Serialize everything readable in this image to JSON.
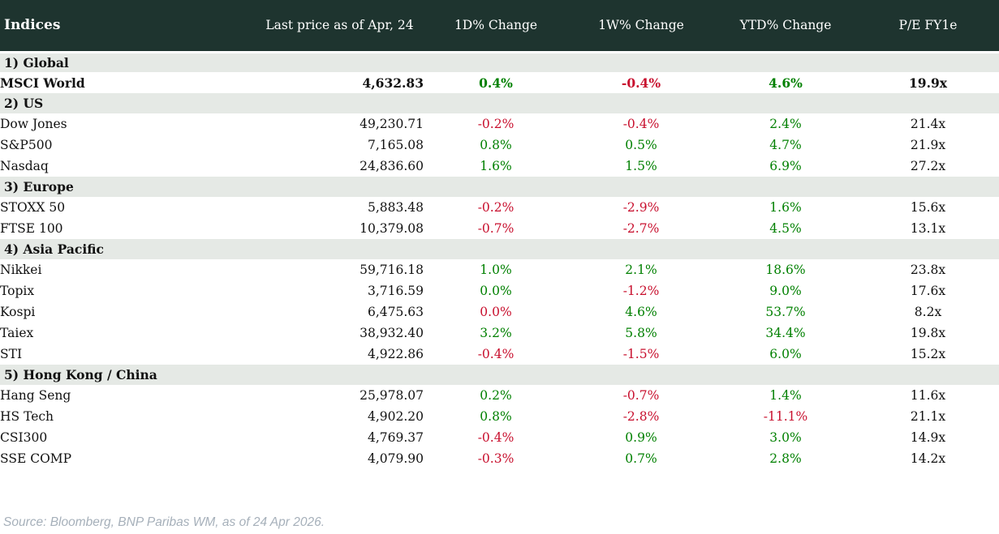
{
  "header": {
    "columns": [
      "Indices",
      "Last price as of Apr, 24",
      "1D% Change",
      "1W% Change",
      "YTD% Change",
      "P/E FY1e"
    ]
  },
  "chart_data": {
    "type": "table",
    "title": "Indices",
    "columns": [
      "Indices",
      "Last price as of Apr, 24",
      "1D% Change",
      "1W% Change",
      "YTD% Change",
      "P/E FY1e"
    ],
    "sections": [
      {
        "label": "1) Global",
        "rows": [
          {
            "name": "MSCI World",
            "bold": true,
            "price": "4,632.83",
            "changes": [
              {
                "v": "0.4%",
                "c": "green"
              },
              {
                "v": "-0.4%",
                "c": "red"
              },
              {
                "v": "4.6%",
                "c": "green"
              }
            ],
            "pe": "19.9x"
          }
        ]
      },
      {
        "label": "2) US",
        "rows": [
          {
            "name": "Dow Jones",
            "price": "49,230.71",
            "changes": [
              {
                "v": "-0.2%",
                "c": "red"
              },
              {
                "v": "-0.4%",
                "c": "red"
              },
              {
                "v": "2.4%",
                "c": "green"
              }
            ],
            "pe": "21.4x"
          },
          {
            "name": "S&P500",
            "price": "7,165.08",
            "changes": [
              {
                "v": "0.8%",
                "c": "green"
              },
              {
                "v": "0.5%",
                "c": "green"
              },
              {
                "v": "4.7%",
                "c": "green"
              }
            ],
            "pe": "21.9x"
          },
          {
            "name": "Nasdaq",
            "price": "24,836.60",
            "changes": [
              {
                "v": "1.6%",
                "c": "green"
              },
              {
                "v": "1.5%",
                "c": "green"
              },
              {
                "v": "6.9%",
                "c": "green"
              }
            ],
            "pe": "27.2x"
          }
        ]
      },
      {
        "label": "3) Europe",
        "rows": [
          {
            "name": "STOXX 50",
            "price": "5,883.48",
            "changes": [
              {
                "v": "-0.2%",
                "c": "red"
              },
              {
                "v": "-2.9%",
                "c": "red"
              },
              {
                "v": "1.6%",
                "c": "green"
              }
            ],
            "pe": "15.6x"
          },
          {
            "name": "FTSE 100",
            "price": "10,379.08",
            "changes": [
              {
                "v": "-0.7%",
                "c": "red"
              },
              {
                "v": "-2.7%",
                "c": "red"
              },
              {
                "v": "4.5%",
                "c": "green"
              }
            ],
            "pe": "13.1x"
          }
        ]
      },
      {
        "label": "4) Asia Pacific",
        "rows": [
          {
            "name": "Nikkei",
            "price": "59,716.18",
            "changes": [
              {
                "v": "1.0%",
                "c": "green"
              },
              {
                "v": "2.1%",
                "c": "green"
              },
              {
                "v": "18.6%",
                "c": "green"
              }
            ],
            "pe": "23.8x"
          },
          {
            "name": "Topix",
            "price": "3,716.59",
            "changes": [
              {
                "v": "0.0%",
                "c": "green"
              },
              {
                "v": "-1.2%",
                "c": "red"
              },
              {
                "v": "9.0%",
                "c": "green"
              }
            ],
            "pe": "17.6x"
          },
          {
            "name": "Kospi",
            "price": "6,475.63",
            "changes": [
              {
                "v": "0.0%",
                "c": "red"
              },
              {
                "v": "4.6%",
                "c": "green"
              },
              {
                "v": "53.7%",
                "c": "green"
              }
            ],
            "pe": "8.2x"
          },
          {
            "name": "Taiex",
            "price": "38,932.40",
            "changes": [
              {
                "v": "3.2%",
                "c": "green"
              },
              {
                "v": "5.8%",
                "c": "green"
              },
              {
                "v": "34.4%",
                "c": "green"
              }
            ],
            "pe": "19.8x"
          },
          {
            "name": "STI",
            "price": "4,922.86",
            "changes": [
              {
                "v": "-0.4%",
                "c": "red"
              },
              {
                "v": "-1.5%",
                "c": "red"
              },
              {
                "v": "6.0%",
                "c": "green"
              }
            ],
            "pe": "15.2x"
          }
        ]
      },
      {
        "label": "5) Hong Kong / China",
        "rows": [
          {
            "name": "Hang Seng",
            "price": "25,978.07",
            "changes": [
              {
                "v": "0.2%",
                "c": "green"
              },
              {
                "v": "-0.7%",
                "c": "red"
              },
              {
                "v": "1.4%",
                "c": "green"
              }
            ],
            "pe": "11.6x"
          },
          {
            "name": "HS Tech",
            "price": "4,902.20",
            "changes": [
              {
                "v": "0.8%",
                "c": "green"
              },
              {
                "v": "-2.8%",
                "c": "red"
              },
              {
                "v": "-11.1%",
                "c": "red"
              }
            ],
            "pe": "21.1x"
          },
          {
            "name": "CSI300",
            "price": "4,769.37",
            "changes": [
              {
                "v": "-0.4%",
                "c": "red"
              },
              {
                "v": "0.9%",
                "c": "green"
              },
              {
                "v": "3.0%",
                "c": "green"
              }
            ],
            "pe": "14.9x"
          },
          {
            "name": "SSE COMP",
            "price": "4,079.90",
            "changes": [
              {
                "v": "-0.3%",
                "c": "red"
              },
              {
                "v": "0.7%",
                "c": "green"
              },
              {
                "v": "2.8%",
                "c": "green"
              }
            ],
            "pe": "14.2x"
          }
        ]
      }
    ]
  },
  "footer": {
    "source_note": "Source: Bloomberg, BNP Paribas WM, as of 24 Apr 2026."
  },
  "colors": {
    "header_bg": "#1e342f",
    "section_bg": "#e5e9e5",
    "positive": "#008000",
    "negative": "#c8102e",
    "header_text": "#ffffff",
    "body_text": "#111111",
    "footer_text": "#a6b0ba"
  }
}
